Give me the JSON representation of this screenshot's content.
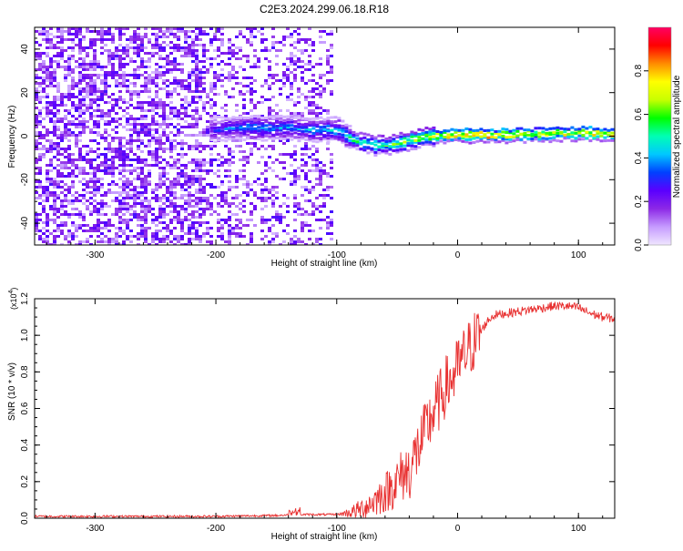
{
  "page": {
    "title": "C2E3.2024.299.06.18.R18"
  },
  "chart_data": [
    {
      "type": "heatmap",
      "title": "C2E3.2024.299.06.18.R18",
      "xlabel": "Height of straight line (km)",
      "ylabel": "Frequency (Hz)",
      "xlim": [
        -350,
        130
      ],
      "ylim": [
        -50,
        50
      ],
      "x_ticks": [
        -300,
        -200,
        -100,
        0,
        100
      ],
      "y_ticks": [
        -40,
        -20,
        0,
        20,
        40
      ],
      "colorbar": {
        "label": "Normalized spectral amplitude",
        "range": [
          0,
          1
        ],
        "ticks": [
          "0.0",
          "0.2",
          "0.4",
          "0.6",
          "0.8"
        ],
        "colors": [
          "#f0e6ff",
          "#c69cff",
          "#8c28e6",
          "#5a00ff",
          "#0040ff",
          "#00c8ff",
          "#00ffb4",
          "#00ff00",
          "#c8ff00",
          "#ffff00",
          "#ff8c00",
          "#ff0000",
          "#ff0064"
        ]
      },
      "signal_track": [
        {
          "x": -205,
          "f": 3.0,
          "a": 0.3
        },
        {
          "x": -190,
          "f": 3.5,
          "a": 0.35
        },
        {
          "x": -175,
          "f": 4.0,
          "a": 0.4
        },
        {
          "x": -160,
          "f": 3.5,
          "a": 0.4
        },
        {
          "x": -145,
          "f": 4.0,
          "a": 0.4
        },
        {
          "x": -130,
          "f": 3.5,
          "a": 0.4
        },
        {
          "x": -115,
          "f": 3.0,
          "a": 0.4
        },
        {
          "x": -100,
          "f": 3.0,
          "a": 0.45
        },
        {
          "x": -90,
          "f": -1.0,
          "a": 0.5
        },
        {
          "x": -80,
          "f": -3.0,
          "a": 0.55
        },
        {
          "x": -70,
          "f": -4.0,
          "a": 0.55
        },
        {
          "x": -60,
          "f": -4.0,
          "a": 0.6
        },
        {
          "x": -50,
          "f": -3.0,
          "a": 0.6
        },
        {
          "x": -40,
          "f": -2.0,
          "a": 0.65
        },
        {
          "x": -30,
          "f": -0.5,
          "a": 0.7
        },
        {
          "x": -20,
          "f": 0.0,
          "a": 0.8
        },
        {
          "x": -10,
          "f": 0.5,
          "a": 0.85
        },
        {
          "x": 0,
          "f": 1.0,
          "a": 0.9
        },
        {
          "x": 10,
          "f": 0.5,
          "a": 0.9
        },
        {
          "x": 30,
          "f": 0.5,
          "a": 0.85
        },
        {
          "x": 50,
          "f": 0.8,
          "a": 0.8
        },
        {
          "x": 70,
          "f": 1.0,
          "a": 0.75
        },
        {
          "x": 90,
          "f": 1.5,
          "a": 0.8
        },
        {
          "x": 110,
          "f": 1.5,
          "a": 0.85
        },
        {
          "x": 130,
          "f": 1.0,
          "a": 0.8
        }
      ],
      "noise_region": [
        -350,
        -105
      ]
    },
    {
      "type": "line",
      "xlabel": "Height of straight line (km)",
      "ylabel": "SNR (10 * v/v)",
      "y_multiplier": "(x10^4)",
      "xlim": [
        -350,
        130
      ],
      "ylim": [
        0,
        1.2
      ],
      "x_ticks": [
        -300,
        -200,
        -100,
        0,
        100
      ],
      "y_ticks": [
        "0.0",
        "0.2",
        "0.4",
        "0.6",
        "0.8",
        "1.0",
        "1.2"
      ],
      "color": "#e83030",
      "series": [
        {
          "x": [
            -350,
            -300,
            -250,
            -200,
            -150,
            -130,
            -100,
            -90,
            -80,
            -70,
            -60,
            -50,
            -45,
            -40,
            -35,
            -30,
            -25,
            -20,
            -15,
            -10,
            -5,
            0,
            5,
            10,
            15,
            20,
            25,
            30,
            40,
            50,
            60,
            70,
            80,
            90,
            100,
            110,
            120,
            130
          ],
          "values": [
            0.01,
            0.01,
            0.01,
            0.01,
            0.015,
            0.02,
            0.02,
            0.03,
            0.05,
            0.09,
            0.14,
            0.2,
            0.24,
            0.26,
            0.34,
            0.42,
            0.5,
            0.58,
            0.64,
            0.72,
            0.76,
            0.82,
            0.88,
            0.93,
            0.98,
            1.03,
            1.08,
            1.11,
            1.12,
            1.13,
            1.14,
            1.15,
            1.16,
            1.16,
            1.15,
            1.12,
            1.1,
            1.09
          ]
        }
      ]
    }
  ]
}
